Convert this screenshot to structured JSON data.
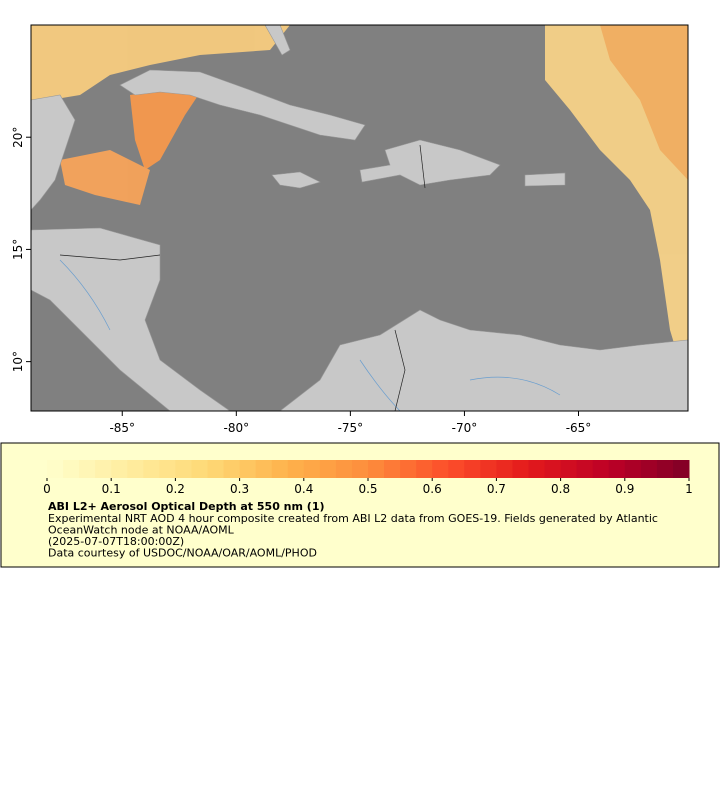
{
  "map": {
    "xlim": [
      -89,
      -60.2
    ],
    "ylim": [
      7.8,
      25
    ],
    "xticks": [
      {
        "value": -85,
        "label": "-85°"
      },
      {
        "value": -80,
        "label": "-80°"
      },
      {
        "value": -75,
        "label": "-75°"
      },
      {
        "value": -70,
        "label": "-70°"
      },
      {
        "value": -65,
        "label": "-65°"
      }
    ],
    "yticks": [
      {
        "value": 10,
        "label": "10°"
      },
      {
        "value": 15,
        "label": "15°"
      },
      {
        "value": 20,
        "label": "20°"
      }
    ]
  },
  "colorbar": {
    "lim": [
      0,
      1
    ],
    "ticks": [
      0,
      0.1,
      0.2,
      0.3,
      0.4,
      0.5,
      0.6,
      0.7,
      0.8,
      0.9,
      1
    ],
    "colors": [
      "#ffffcc",
      "#ffeda0",
      "#fed976",
      "#feb24c",
      "#fd8d3c",
      "#fc4e2a",
      "#e31a1c",
      "#bd0026",
      "#800026"
    ]
  },
  "legend": {
    "title": "ABI L2+ Aerosol Optical Depth at 550 nm (1)",
    "lines": [
      "Experimental NRT AOD 4 hour composite created from ABI L2 data from GOES-19. Fields generated by Atlantic",
      "OceanWatch node at NOAA/AOML",
      "(2025-07-07T18:00:00Z)",
      "Data courtesy of USDOC/NOAA/OAR/AOML/PHOD"
    ]
  }
}
